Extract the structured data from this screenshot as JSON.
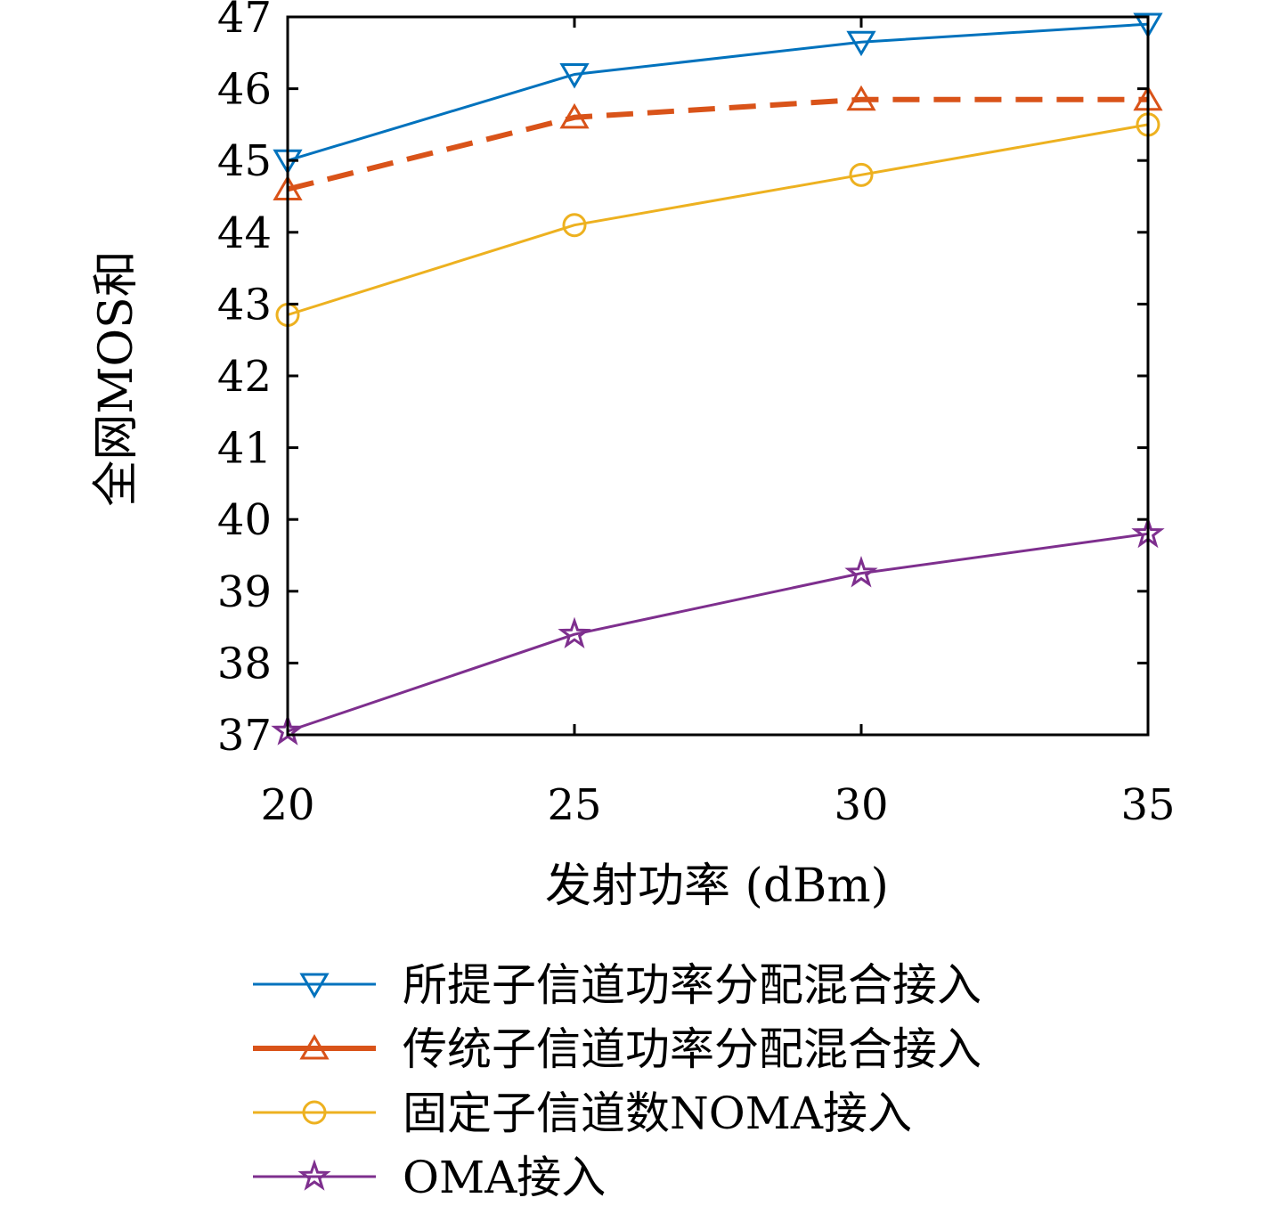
{
  "chart_data": {
    "type": "line",
    "title": "",
    "xlabel": "发射功率 (dBm)",
    "ylabel": "全网MOS和",
    "x": [
      20,
      25,
      30,
      35
    ],
    "xlim": [
      20,
      35
    ],
    "ylim": [
      37,
      47
    ],
    "xticks": [
      "20",
      "25",
      "30",
      "35"
    ],
    "yticks": [
      "37",
      "38",
      "39",
      "40",
      "41",
      "42",
      "43",
      "44",
      "45",
      "46",
      "47"
    ],
    "grid": false,
    "legend_position": "bottom",
    "series": [
      {
        "name": "所提子信道功率分配混合接入",
        "color": "#0072BD",
        "marker": "triangle-down",
        "dash": "solid",
        "values": [
          45.0,
          46.2,
          46.65,
          46.9
        ]
      },
      {
        "name": "传统子信道功率分配混合接入",
        "color": "#D95319",
        "marker": "triangle-up",
        "dash": "dashed",
        "values": [
          44.6,
          45.6,
          45.85,
          45.85
        ]
      },
      {
        "name": "固定子信道数NOMA接入",
        "color": "#EDB120",
        "marker": "circle",
        "dash": "solid",
        "values": [
          42.85,
          44.1,
          44.8,
          45.5
        ]
      },
      {
        "name": "OMA接入",
        "color": "#7E2F8E",
        "marker": "star",
        "dash": "solid",
        "values": [
          37.05,
          38.4,
          39.25,
          39.8
        ]
      }
    ]
  }
}
